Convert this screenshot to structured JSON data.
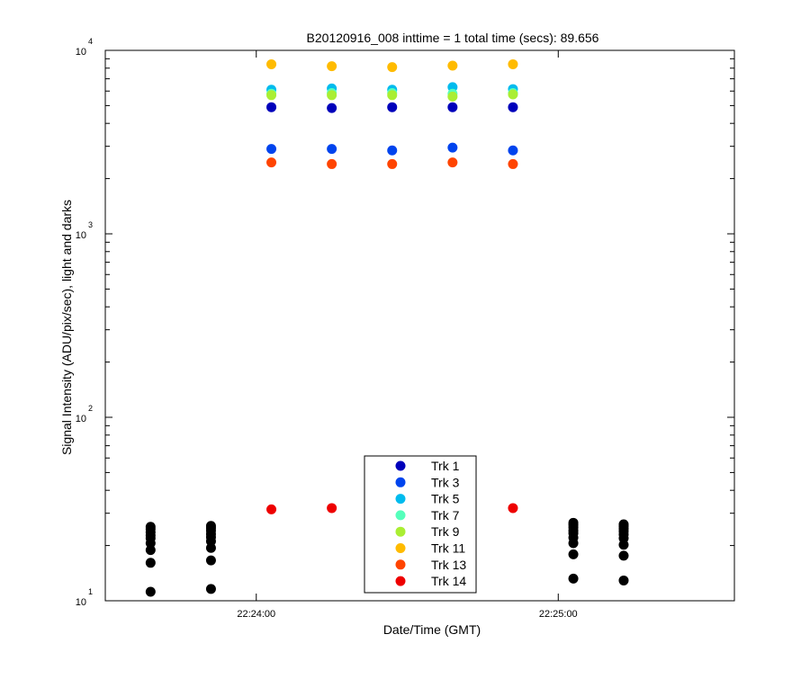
{
  "chart_data": {
    "type": "scatter",
    "title": "B20120916_008 inttime = 1 total time (secs): 89.656",
    "xlabel": "Date/Time (GMT)",
    "ylabel": "Signal Intensity (ADU/pix/sec), light and darks",
    "x_axis": {
      "range": [
        "22:23:30",
        "22:25:35"
      ],
      "tick_labels": [
        "22:24:00",
        "22:25:00"
      ]
    },
    "y_axis": {
      "scale": "log",
      "range": [
        10,
        10000
      ],
      "tick_labels": [
        {
          "base": "10",
          "exp": "1"
        },
        {
          "base": "10",
          "exp": "2"
        },
        {
          "base": "10",
          "exp": "3"
        },
        {
          "base": "10",
          "exp": "4"
        }
      ]
    },
    "legend_position": "bottom-center",
    "x": [
      "22:23:39",
      "22:23:51",
      "22:24:03",
      "22:24:15",
      "22:24:27",
      "22:24:39",
      "22:24:51",
      "22:25:03",
      "22:25:13"
    ],
    "series": [
      {
        "name": "Trk 1",
        "color": "#0000bb",
        "values": [
          null,
          null,
          4900,
          4850,
          4900,
          4900,
          4900,
          null,
          null
        ]
      },
      {
        "name": "Trk 3",
        "color": "#0044ee",
        "values": [
          null,
          null,
          2900,
          2900,
          2850,
          2950,
          2850,
          null,
          null
        ]
      },
      {
        "name": "Trk 5",
        "color": "#00bbee",
        "values": [
          null,
          null,
          6100,
          6200,
          6100,
          6300,
          6150,
          null,
          null
        ]
      },
      {
        "name": "Trk 7",
        "color": "#55ffbb",
        "values": [
          null,
          null,
          5800,
          5850,
          5850,
          5800,
          5850,
          null,
          null
        ]
      },
      {
        "name": "Trk 9",
        "color": "#aaee33",
        "values": [
          null,
          null,
          5700,
          5700,
          5700,
          5600,
          5750,
          null,
          null
        ]
      },
      {
        "name": "Trk 11",
        "color": "#ffbb00",
        "values": [
          null,
          null,
          8400,
          8200,
          8100,
          8250,
          8400,
          null,
          null
        ]
      },
      {
        "name": "Trk 13",
        "color": "#ff4400",
        "values": [
          null,
          null,
          2450,
          2400,
          2400,
          2450,
          2400,
          null,
          null
        ]
      },
      {
        "name": "Trk 14",
        "color": "#ee0000",
        "values": [
          null,
          null,
          31.5,
          32,
          null,
          null,
          32,
          null,
          null
        ]
      }
    ],
    "darks": {
      "color": "#000000",
      "x": [
        "22:23:39",
        "22:23:51",
        "22:25:03",
        "22:25:13"
      ],
      "values": [
        [
          11.2,
          16.1,
          18.9,
          20.6,
          21.9,
          22.7,
          23.6,
          24.6,
          25.3
        ],
        [
          11.6,
          16.6,
          19.4,
          21.1,
          22.2,
          23.1,
          24.1,
          24.9,
          25.6
        ],
        [
          13.2,
          17.9,
          20.6,
          22.1,
          23.3,
          24.1,
          25.1,
          25.9,
          26.6
        ],
        [
          12.9,
          17.6,
          20.2,
          21.9,
          23.0,
          23.9,
          24.7,
          25.5,
          26.1
        ]
      ]
    }
  }
}
